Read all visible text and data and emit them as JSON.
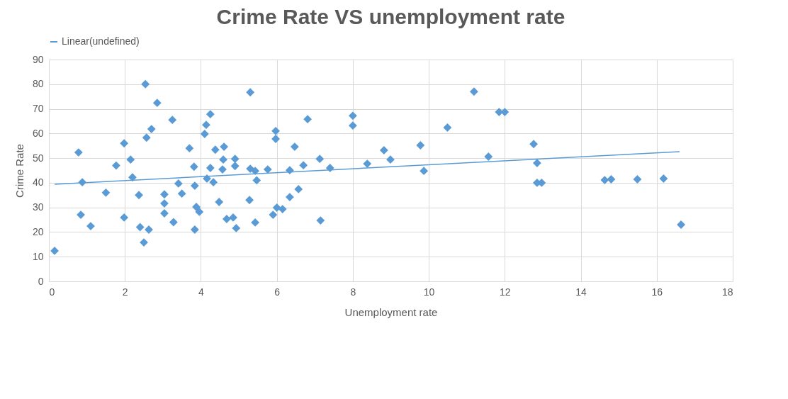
{
  "chart_data": {
    "type": "scatter",
    "title": "Crime Rate VS unemployment rate",
    "xlabel": "Unemployment rate",
    "ylabel": "Crime Rate",
    "xlim": [
      0,
      18
    ],
    "xticks": [
      0,
      2,
      4,
      6,
      8,
      10,
      12,
      14,
      16,
      18
    ],
    "ylim": [
      0,
      90
    ],
    "yticks": [
      0,
      10,
      20,
      30,
      40,
      50,
      60,
      70,
      80,
      90
    ],
    "grid": true,
    "legend": "top",
    "series": [
      {
        "marker": "diamond",
        "color": "#5b9bd5",
        "x": [
          0.15,
          0.78,
          0.88,
          0.84,
          1.1,
          1.5,
          1.77,
          1.98,
          1.98,
          2.15,
          2.2,
          2.37,
          2.4,
          2.5,
          2.54,
          2.57,
          2.63,
          2.7,
          2.85,
          3.04,
          3.04,
          3.04,
          3.25,
          3.28,
          3.41,
          3.5,
          3.7,
          3.82,
          3.84,
          3.84,
          3.88,
          3.96,
          4.1,
          4.14,
          4.25,
          4.25,
          4.16,
          4.33,
          4.38,
          4.48,
          4.57,
          4.59,
          4.61,
          4.68,
          4.85,
          4.9,
          4.9,
          4.93,
          5.3,
          5.28,
          5.3,
          5.43,
          5.47,
          5.43,
          5.76,
          5.97,
          5.97,
          5.9,
          6.0,
          6.15,
          6.34,
          6.34,
          6.47,
          6.57,
          6.7,
          6.81,
          7.13,
          7.15,
          7.4,
          8.0,
          8.0,
          8.38,
          8.82,
          8.99,
          9.78,
          9.87,
          10.49,
          11.19,
          11.57,
          11.85,
          12.0,
          12.76,
          12.85,
          12.85,
          12.97,
          14.63,
          14.8,
          15.49,
          16.18,
          16.64
        ],
        "values": [
          12.4,
          52.3,
          40.2,
          27,
          22.4,
          36,
          47,
          56,
          25.9,
          49.4,
          42.2,
          35,
          22,
          15.8,
          80,
          58.3,
          21,
          61.8,
          72.4,
          35.3,
          31.6,
          27.6,
          65.5,
          24,
          39.7,
          35.6,
          54,
          46.5,
          38.8,
          21,
          30.2,
          28.2,
          59.8,
          63.5,
          67.8,
          46,
          41.7,
          40.2,
          53.4,
          32.2,
          45.4,
          49.4,
          54.6,
          25.3,
          25.9,
          49.7,
          46.8,
          21.6,
          45.7,
          33,
          76.7,
          44.8,
          41,
          23.9,
          45.4,
          61,
          57.8,
          27,
          29.9,
          29.3,
          45.1,
          34.2,
          54.6,
          37.4,
          47.1,
          65.8,
          49.7,
          24.7,
          46,
          67.2,
          63.2,
          47.7,
          53.2,
          49.4,
          55.2,
          44.8,
          62.4,
          77,
          50.6,
          68.7,
          68.7,
          55.7,
          48,
          40,
          40,
          41.1,
          41.4,
          41.4,
          41.7,
          23
        ]
      },
      {
        "type": "line",
        "name": "Linear(undefined)",
        "color": "#5b9bd5",
        "x": [
          0.15,
          16.6
        ],
        "values": [
          39.4,
          52.6
        ]
      }
    ]
  }
}
